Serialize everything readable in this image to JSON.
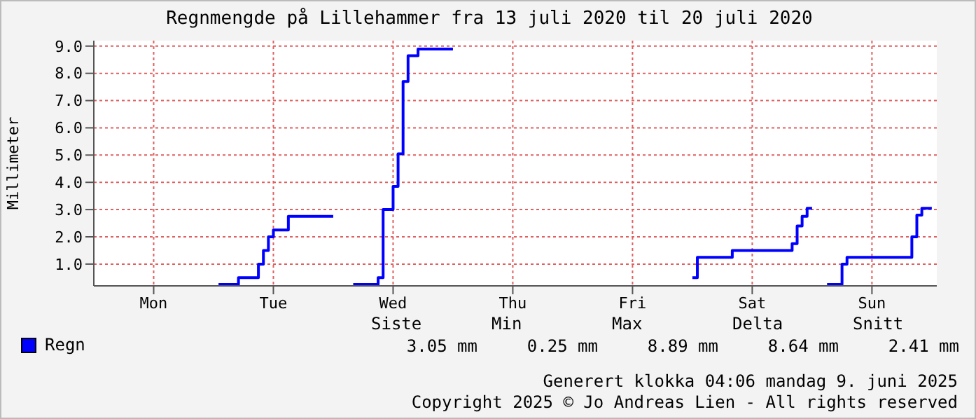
{
  "chart_data": {
    "type": "step",
    "title": "Regnmengde på Lillehammer fra 13 juli 2020 til 20 juli 2020",
    "ylabel": "Millimeter",
    "categories": [
      null,
      null,
      null,
      null,
      null,
      null,
      null,
      null,
      null,
      null,
      null,
      null,
      "Mon",
      null,
      null,
      null,
      null,
      null,
      null,
      null,
      null,
      null,
      null,
      null,
      null,
      null,
      null,
      null,
      null,
      null,
      null,
      null,
      null,
      null,
      null,
      null,
      "Tue",
      null,
      null,
      null,
      null,
      null,
      null,
      null,
      null,
      null,
      null,
      null,
      null,
      null,
      null,
      null,
      null,
      null,
      null,
      null,
      null,
      null,
      null,
      null,
      "Wed",
      null,
      null,
      null,
      null,
      null,
      null,
      null,
      null,
      null,
      null,
      null,
      null,
      null,
      null,
      null,
      null,
      null,
      null,
      null,
      null,
      null,
      null,
      null,
      "Thu",
      null,
      null,
      null,
      null,
      null,
      null,
      null,
      null,
      null,
      null,
      null,
      null,
      null,
      null,
      null,
      null,
      null,
      null,
      null,
      null,
      null,
      null,
      null,
      "Fri",
      null,
      null,
      null,
      null,
      null,
      null,
      null,
      null,
      null,
      null,
      null,
      null,
      null,
      null,
      null,
      null,
      null,
      null,
      null,
      null,
      null,
      null,
      null,
      "Sat",
      null,
      null,
      null,
      null,
      null,
      null,
      null,
      null,
      null,
      null,
      null,
      null,
      null,
      null,
      null,
      null,
      null,
      null,
      null,
      null,
      null,
      null,
      null,
      "Sun",
      null,
      null,
      null,
      null,
      null,
      null,
      null,
      null,
      null,
      null,
      null,
      null,
      null
    ],
    "ylim": [
      0.2,
      9.2
    ],
    "yticks": [
      {
        "value": 1,
        "label": "1.0"
      },
      {
        "value": 2,
        "label": "2.0"
      },
      {
        "value": 3,
        "label": "3.0"
      },
      {
        "value": 4,
        "label": "4.0"
      },
      {
        "value": 5,
        "label": "5.0"
      },
      {
        "value": 6,
        "label": "6.0"
      },
      {
        "value": 7,
        "label": "7.0"
      },
      {
        "value": 8,
        "label": "8.0"
      },
      {
        "value": 9,
        "label": "9.0"
      }
    ],
    "grid": true,
    "legend": "bottom left",
    "series": [
      {
        "name": "Regn",
        "color": "#0000ff",
        "values": [
          null,
          null,
          null,
          null,
          null,
          null,
          null,
          null,
          null,
          null,
          null,
          null,
          null,
          null,
          null,
          null,
          null,
          null,
          null,
          null,
          null,
          null,
          null,
          null,
          null,
          0.25,
          0.25,
          0.25,
          0.25,
          0.5,
          0.5,
          0.5,
          0.5,
          1.0,
          1.5,
          2.0,
          2.25,
          2.25,
          2.25,
          2.75,
          2.75,
          2.75,
          2.75,
          2.75,
          2.75,
          2.75,
          2.75,
          2.75,
          2.75,
          null,
          null,
          null,
          0.25,
          0.25,
          0.25,
          0.25,
          0.25,
          0.5,
          3.0,
          3.0,
          3.85,
          5.05,
          7.7,
          8.65,
          8.65,
          8.89,
          8.89,
          8.89,
          8.89,
          8.89,
          8.89,
          8.89,
          8.89,
          null,
          null,
          null,
          null,
          null,
          null,
          null,
          null,
          null,
          null,
          null,
          null,
          null,
          null,
          null,
          null,
          null,
          null,
          null,
          null,
          null,
          null,
          null,
          null,
          null,
          null,
          null,
          null,
          null,
          null,
          null,
          null,
          null,
          null,
          null,
          null,
          null,
          null,
          null,
          null,
          null,
          null,
          null,
          null,
          null,
          null,
          null,
          0.5,
          1.25,
          1.25,
          1.25,
          1.25,
          1.25,
          1.25,
          1.25,
          1.5,
          1.5,
          1.5,
          1.5,
          1.5,
          1.5,
          1.5,
          1.5,
          1.5,
          1.5,
          1.5,
          1.5,
          1.75,
          2.4,
          2.75,
          3.05,
          3.05,
          null,
          null,
          0.25,
          0.25,
          0.25,
          1.0,
          1.25,
          1.25,
          1.25,
          1.25,
          1.25,
          1.25,
          1.25,
          1.25,
          1.25,
          1.25,
          1.25,
          1.25,
          1.25,
          2.0,
          2.8,
          3.05,
          3.05,
          3.05,
          null
        ]
      }
    ],
    "annotations": [
      "Siste",
      "Min",
      "Max",
      "Delta",
      "Snitt",
      "3.05 mm",
      "0.25 mm",
      "8.89 mm",
      "8.64 mm",
      "2.41 mm",
      "Generert klokka 04:06 mandag 9. juni 2025",
      "Copyright 2025 © Jo Andreas Lien - All rights reserved"
    ]
  }
}
